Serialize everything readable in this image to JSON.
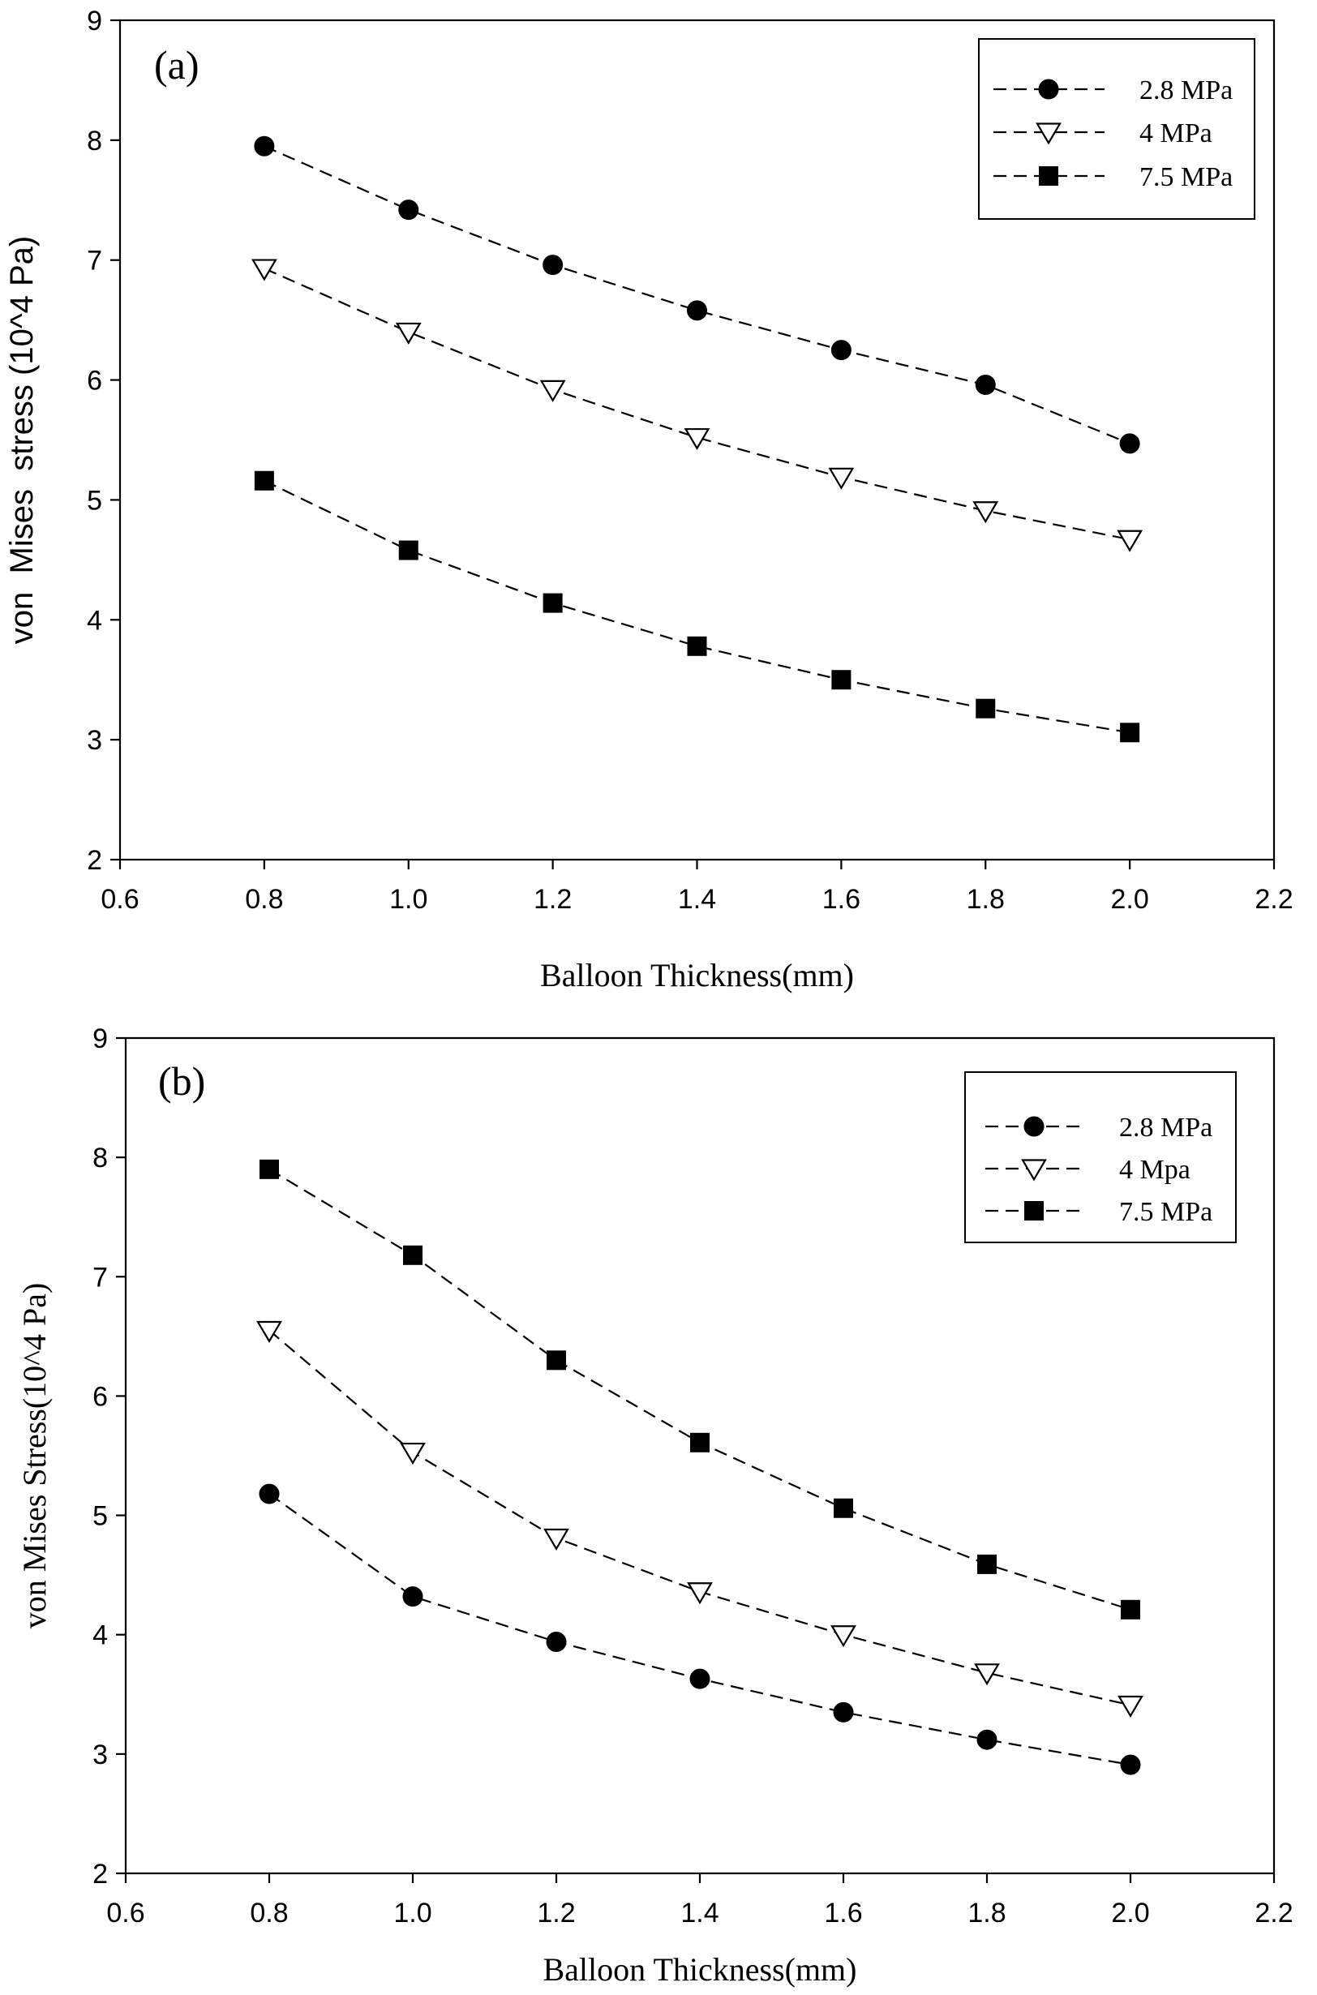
{
  "chart_data": [
    {
      "type": "line",
      "panel_label": "(a)",
      "xlabel": "Balloon Thickness(mm)",
      "ylabel": "von  Mises  stress (10^4 Pa)",
      "xlim": [
        0.6,
        2.2
      ],
      "ylim": [
        2,
        9
      ],
      "x_ticks": [
        "0.6",
        "0.8",
        "1.0",
        "1.2",
        "1.4",
        "1.6",
        "1.8",
        "2.0",
        "2.2"
      ],
      "y_ticks": [
        "2",
        "3",
        "4",
        "5",
        "6",
        "7",
        "8",
        "9"
      ],
      "legend_position": "top-right",
      "x": [
        0.8,
        1.0,
        1.2,
        1.4,
        1.6,
        1.8,
        2.0
      ],
      "series": [
        {
          "name": "2.8 MPa",
          "marker": "filled-circle",
          "values": [
            7.95,
            7.42,
            6.96,
            6.58,
            6.25,
            5.96,
            5.47
          ]
        },
        {
          "name": "4 MPa",
          "marker": "open-triangle-down",
          "values": [
            6.93,
            6.4,
            5.92,
            5.52,
            5.19,
            4.91,
            4.67
          ]
        },
        {
          "name": "7.5 MPa",
          "marker": "filled-square",
          "values": [
            5.16,
            4.58,
            4.14,
            3.78,
            3.5,
            3.26,
            3.06
          ]
        }
      ]
    },
    {
      "type": "line",
      "panel_label": "(b)",
      "xlabel": "Balloon Thickness(mm)",
      "ylabel": "von Mises Stress(10^4 Pa)",
      "xlim": [
        0.6,
        2.2
      ],
      "ylim": [
        2,
        9
      ],
      "x_ticks": [
        "0.6",
        "0.8",
        "1.0",
        "1.2",
        "1.4",
        "1.6",
        "1.8",
        "2.0",
        "2.2"
      ],
      "y_ticks": [
        "2",
        "3",
        "4",
        "5",
        "6",
        "7",
        "8",
        "9"
      ],
      "legend_position": "top-right",
      "x": [
        0.8,
        1.0,
        1.2,
        1.4,
        1.6,
        1.8,
        2.0
      ],
      "series": [
        {
          "name": "2.8 MPa",
          "marker": "filled-circle",
          "values": [
            5.18,
            4.32,
            3.94,
            3.63,
            3.35,
            3.12,
            2.91
          ]
        },
        {
          "name": "4 Mpa",
          "marker": "open-triangle-down",
          "values": [
            6.55,
            5.53,
            4.81,
            4.36,
            4.0,
            3.68,
            3.41
          ]
        },
        {
          "name": "7.5 MPa",
          "marker": "filled-square",
          "values": [
            7.9,
            7.18,
            6.3,
            5.61,
            5.06,
            4.59,
            4.21
          ]
        }
      ]
    }
  ]
}
